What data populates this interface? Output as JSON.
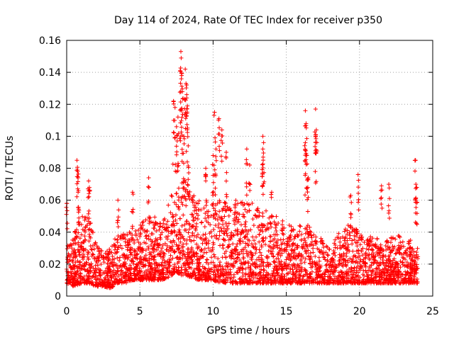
{
  "chart_data": {
    "type": "scatter",
    "title": "Day 114 of 2024, Rate Of TEC Index for receiver p350",
    "xlabel": "GPS time / hours",
    "ylabel": "ROTI / TECUs",
    "xlim": [
      0,
      25
    ],
    "ylim": [
      0,
      0.16
    ],
    "xticks": [
      0,
      5,
      10,
      15,
      20,
      25
    ],
    "xtick_labels": [
      "0",
      "5",
      "10",
      "15",
      "20",
      "25"
    ],
    "yticks": [
      0,
      0.02,
      0.04,
      0.06,
      0.08,
      0.1,
      0.12,
      0.14,
      0.16
    ],
    "ytick_labels": [
      "0",
      "0.02",
      "0.04",
      "0.06",
      "0.08",
      "0.1",
      "0.12",
      "0.14",
      "0.16"
    ],
    "grid": true,
    "marker": "+",
    "color": "#ff0000",
    "data_range_x": [
      0,
      24
    ],
    "envelope": {
      "description": "Dense scatter of ROTI values; points listed are representative of the visible cloud",
      "x": [
        0,
        0.5,
        1,
        1.5,
        2,
        2.5,
        3,
        3.5,
        4,
        4.5,
        5,
        5.5,
        6,
        6.5,
        7,
        7.5,
        8,
        8.5,
        9,
        9.5,
        10,
        10.5,
        11,
        11.5,
        12,
        12.5,
        13,
        13.5,
        14,
        14.5,
        15,
        15.5,
        16,
        16.5,
        17,
        17.5,
        18,
        18.5,
        19,
        19.5,
        20,
        20.5,
        21,
        21.5,
        22,
        22.5,
        23,
        23.5,
        24
      ],
      "typical_max": [
        0.03,
        0.04,
        0.05,
        0.05,
        0.035,
        0.03,
        0.03,
        0.04,
        0.04,
        0.04,
        0.045,
        0.05,
        0.05,
        0.045,
        0.06,
        0.07,
        0.075,
        0.065,
        0.06,
        0.06,
        0.06,
        0.06,
        0.06,
        0.06,
        0.06,
        0.06,
        0.055,
        0.055,
        0.05,
        0.05,
        0.045,
        0.045,
        0.045,
        0.045,
        0.04,
        0.035,
        0.03,
        0.04,
        0.045,
        0.045,
        0.04,
        0.035,
        0.04,
        0.035,
        0.035,
        0.04,
        0.035,
        0.035,
        0.03
      ],
      "typical_min": [
        0.008,
        0.006,
        0.008,
        0.008,
        0.006,
        0.006,
        0.005,
        0.008,
        0.008,
        0.01,
        0.01,
        0.01,
        0.01,
        0.01,
        0.012,
        0.015,
        0.012,
        0.012,
        0.01,
        0.01,
        0.01,
        0.008,
        0.008,
        0.008,
        0.008,
        0.008,
        0.008,
        0.008,
        0.008,
        0.008,
        0.008,
        0.008,
        0.008,
        0.008,
        0.008,
        0.008,
        0.008,
        0.008,
        0.008,
        0.008,
        0.008,
        0.008,
        0.008,
        0.008,
        0.008,
        0.008,
        0.008,
        0.008,
        0.008
      ]
    },
    "spikes": [
      {
        "x": 0.0,
        "y": 0.058
      },
      {
        "x": 0.7,
        "y": 0.085
      },
      {
        "x": 0.75,
        "y": 0.078
      },
      {
        "x": 0.8,
        "y": 0.066
      },
      {
        "x": 1.5,
        "y": 0.072
      },
      {
        "x": 1.55,
        "y": 0.068
      },
      {
        "x": 3.5,
        "y": 0.06
      },
      {
        "x": 4.5,
        "y": 0.065
      },
      {
        "x": 5.6,
        "y": 0.074
      },
      {
        "x": 7.3,
        "y": 0.122
      },
      {
        "x": 7.4,
        "y": 0.118
      },
      {
        "x": 7.5,
        "y": 0.106
      },
      {
        "x": 7.6,
        "y": 0.112
      },
      {
        "x": 7.8,
        "y": 0.153
      },
      {
        "x": 7.82,
        "y": 0.149
      },
      {
        "x": 7.75,
        "y": 0.141
      },
      {
        "x": 7.85,
        "y": 0.138
      },
      {
        "x": 8.1,
        "y": 0.142
      },
      {
        "x": 8.15,
        "y": 0.133
      },
      {
        "x": 8.2,
        "y": 0.124
      },
      {
        "x": 8.25,
        "y": 0.119
      },
      {
        "x": 7.9,
        "y": 0.128
      },
      {
        "x": 8.0,
        "y": 0.1
      },
      {
        "x": 8.3,
        "y": 0.094
      },
      {
        "x": 9.5,
        "y": 0.08
      },
      {
        "x": 10.1,
        "y": 0.115
      },
      {
        "x": 10.4,
        "y": 0.111
      },
      {
        "x": 10.2,
        "y": 0.092
      },
      {
        "x": 10.0,
        "y": 0.088
      },
      {
        "x": 10.6,
        "y": 0.104
      },
      {
        "x": 10.9,
        "y": 0.09
      },
      {
        "x": 12.3,
        "y": 0.092
      },
      {
        "x": 12.5,
        "y": 0.082
      },
      {
        "x": 13.4,
        "y": 0.1
      },
      {
        "x": 13.45,
        "y": 0.096
      },
      {
        "x": 13.4,
        "y": 0.092
      },
      {
        "x": 14.0,
        "y": 0.065
      },
      {
        "x": 16.3,
        "y": 0.116
      },
      {
        "x": 16.35,
        "y": 0.108
      },
      {
        "x": 16.3,
        "y": 0.096
      },
      {
        "x": 16.4,
        "y": 0.088
      },
      {
        "x": 17.0,
        "y": 0.117
      },
      {
        "x": 17.05,
        "y": 0.104
      },
      {
        "x": 17.0,
        "y": 0.1
      },
      {
        "x": 16.5,
        "y": 0.074
      },
      {
        "x": 19.9,
        "y": 0.076
      },
      {
        "x": 19.4,
        "y": 0.063
      },
      {
        "x": 21.5,
        "y": 0.069
      },
      {
        "x": 22.0,
        "y": 0.07
      },
      {
        "x": 23.8,
        "y": 0.085
      },
      {
        "x": 23.85,
        "y": 0.07
      },
      {
        "x": 23.9,
        "y": 0.068
      }
    ]
  }
}
